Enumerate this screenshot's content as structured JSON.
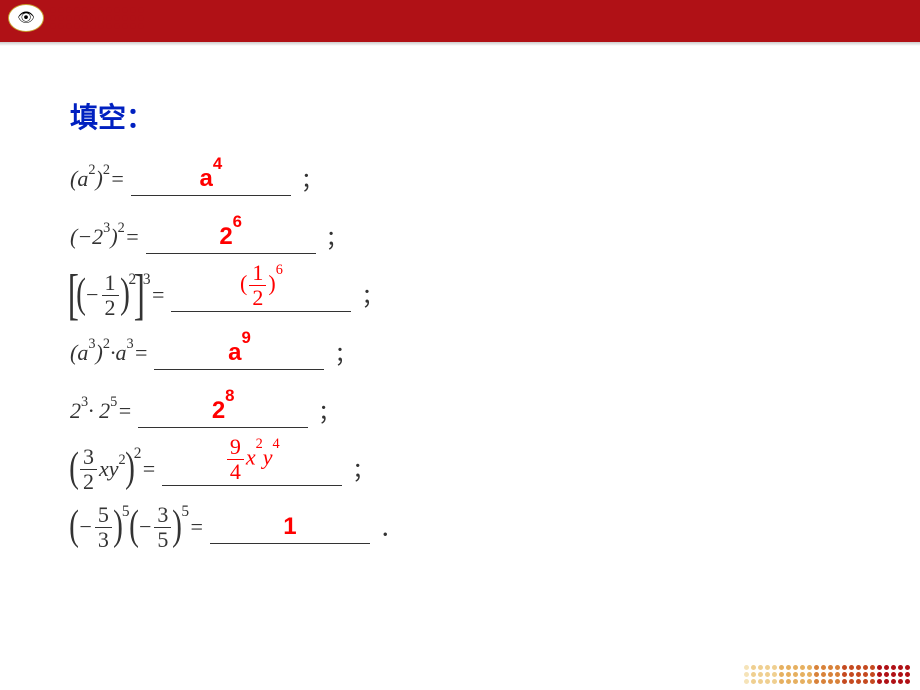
{
  "header": {
    "bar_color": "#b01116",
    "logo_glyph": "👁",
    "dot_color": "#b01116",
    "dot_cols": 12,
    "dot_rows": 3
  },
  "title": {
    "text": "填空：",
    "color": "#0020c0",
    "fontsize": 28
  },
  "problems": [
    {
      "expr_html": "(<i>a</i><sup>2</sup>)<sup>2</sup> =",
      "answer_html": "a<sup>4</sup>",
      "answer_class": "answer",
      "punct": "；",
      "blank_width": 160
    },
    {
      "expr_html": "(−2<sup>3</sup>)<sup>2</sup> =",
      "answer_html": "2<sup>6</sup>",
      "answer_class": "answer",
      "punct": "；",
      "blank_width": 170
    },
    {
      "expr_html": "<span class='bigbracket'>[</span><span class='medparen'>(</span>−<span class='frac'><span class='num'>1</span><span class='den'>2</span></span><span class='medparen'>)</span><span class='supout'>2</span><span class='bigbracket'>]</span><span class='supout'>3</span>=",
      "answer_html": "(<span class='frac' style='color:#ff0000'><span class='num'>1</span><span class='den'>2</span></span>)<sup>6</sup>",
      "answer_class": "answer-serif",
      "punct": "；",
      "blank_width": 180
    },
    {
      "expr_html": "(<i>a</i><sup>3</sup>)<sup>2</sup> · <i>a</i><sup>3</sup> =",
      "answer_html": "a<sup>9</sup>",
      "answer_class": "answer",
      "punct": "；",
      "blank_width": 170
    },
    {
      "expr_html": "2<sup>3</sup> · 2<sup>5</sup> =",
      "answer_html": "2<sup>8</sup>",
      "answer_class": "answer",
      "punct": "；",
      "blank_width": 170
    },
    {
      "expr_html": "<span class='medparen'>(</span><span class='frac'><span class='num'>3</span><span class='den'>2</span></span><i>xy</i><sup>2</sup><span class='medparen'>)</span><span class='supout'>2</span>=",
      "answer_html": "<span class='frac' style='color:#ff0000'><span class='num'>9</span><span class='den'>4</span></span><i>x</i><sup>2</sup><i>y</i><sup>4</sup>",
      "answer_class": "answer-serif",
      "punct": "；",
      "blank_width": 180
    },
    {
      "expr_html": "<span class='medparen'>(</span>−<span class='frac'><span class='num'>5</span><span class='den'>3</span></span><span class='medparen'>)</span><span class='supout'>5</span><span class='medparen'>(</span>−<span class='frac'><span class='num'>3</span><span class='den'>5</span></span><span class='medparen'>)</span><span class='supout'>5</span>=",
      "answer_html": "1",
      "answer_class": "answer",
      "punct": "．",
      "blank_width": 160
    }
  ],
  "footer": {
    "cols": 24,
    "rows": 3,
    "colors": [
      "#b01116",
      "#c54a20",
      "#d8823a",
      "#e6b060",
      "#efcf90",
      "#f5e3b8"
    ]
  }
}
